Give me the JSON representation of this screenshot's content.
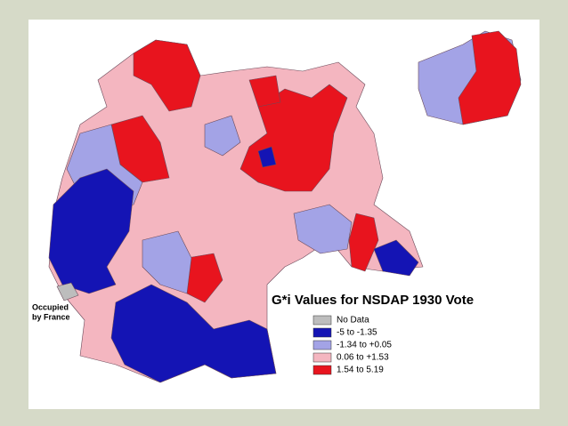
{
  "title": "G*i  Values for NSDAP 1930 Vote",
  "annotation": [
    "Occupied",
    "by France"
  ],
  "legend": [
    {
      "label": "No Data",
      "color": "#bdbdbd"
    },
    {
      "label": "-5 to -1.35",
      "color": "#1414b4"
    },
    {
      "label": "-1.34 to +0.05",
      "color": "#a3a3e6"
    },
    {
      "label": "0.06 to +1.53",
      "color": "#f4b6c0"
    },
    {
      "label": "1.54 to 5.19",
      "color": "#e8141e"
    }
  ]
}
